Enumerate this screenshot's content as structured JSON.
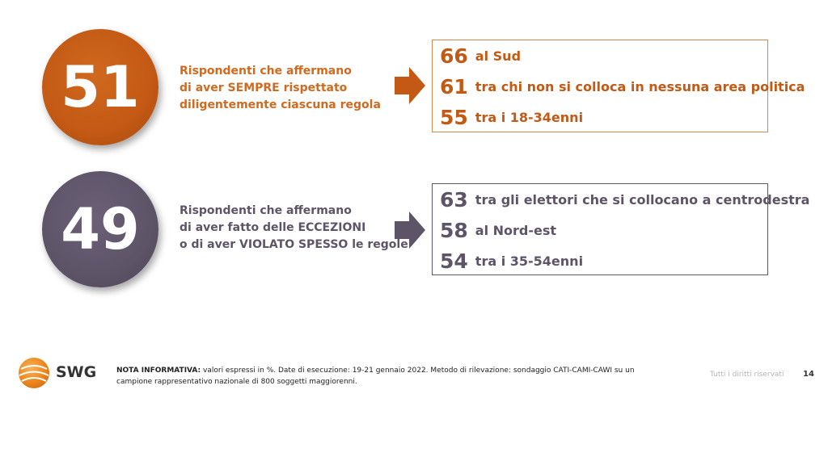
{
  "colors": {
    "orange": "#c35914",
    "purple": "#5e5468"
  },
  "block1": {
    "value": "51",
    "desc_lines": [
      "Rispondenti che affermano",
      "di aver SEMPRE rispettato",
      "diligentemente ciascuna regola"
    ],
    "rows": [
      {
        "num": "66",
        "text": "al Sud"
      },
      {
        "num": "61",
        "text": "tra chi non si colloca in nessuna area politica"
      },
      {
        "num": "55",
        "text": "tra i 18-34enni"
      }
    ]
  },
  "block2": {
    "value": "49",
    "desc_lines": [
      "Rispondenti che affermano",
      "di aver fatto delle ECCEZIONI",
      "o di aver VIOLATO SPESSO le regole"
    ],
    "rows": [
      {
        "num": "63",
        "text": "tra gli elettori che si collocano a centrodestra"
      },
      {
        "num": "58",
        "text": "al Nord-est"
      },
      {
        "num": "54",
        "text": "tra i 35-54enni"
      }
    ]
  },
  "footer": {
    "logo_text": "SWG",
    "note_label": "NOTA INFORMATIVA:",
    "note_text": "valori espressi in %. Date di esecuzione: 19-21 gennaio 2022. Metodo di rilevazione: sondaggio CATI-CAMI-CAWI su un campione rappresentativo nazionale di 800 soggetti maggiorenni.",
    "rights": "Tutti i diritti riservati",
    "page_number": "14"
  }
}
